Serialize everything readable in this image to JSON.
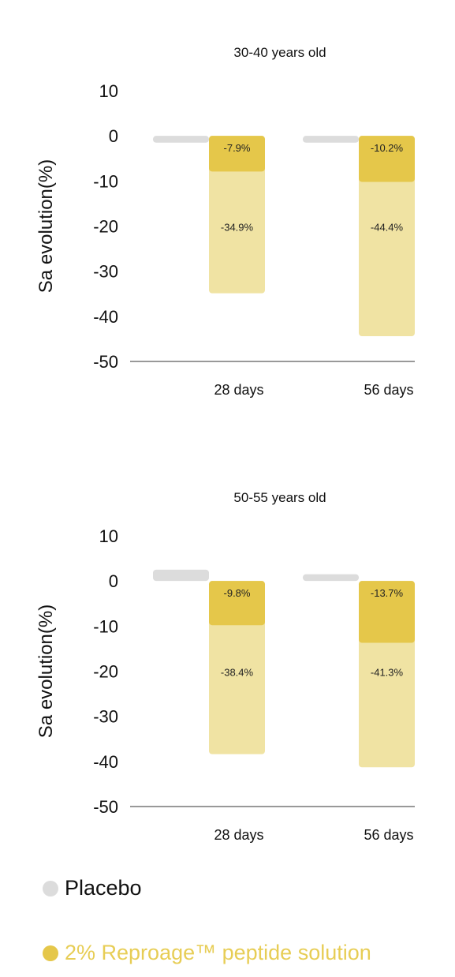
{
  "colors": {
    "placebo": "#dcdcdc",
    "peptide_strong": "#e5c74a",
    "peptide_light": "#f0e3a3",
    "legend_peptide_text": "#e7cd55"
  },
  "legend": {
    "placebo_label": "Placebo",
    "peptide_label": "2% Reproage™ peptide solution"
  },
  "chart_data": [
    {
      "type": "bar",
      "title": "30-40 years old",
      "ylabel": "Sa evolution(%)",
      "xlabel": "",
      "ylim": [
        -50,
        10
      ],
      "yticks": [
        10,
        0,
        -10,
        -20,
        -30,
        -40,
        -50
      ],
      "categories": [
        "28 days",
        "56 days"
      ],
      "series": [
        {
          "name": "Placebo",
          "values": [
            -1.5,
            -1.5
          ]
        },
        {
          "name": "2% Reproage™ peptide solution",
          "values": [
            -7.9,
            -10.2
          ],
          "labels": [
            "-7.9%",
            "-10.2%"
          ]
        },
        {
          "name": "2% Reproage™ peptide solution",
          "values": [
            -34.9,
            -44.4
          ],
          "labels": [
            "-34.9%",
            "-44.4%"
          ]
        }
      ]
    },
    {
      "type": "bar",
      "title": "50-55 years old",
      "ylabel": "Sa evolution(%)",
      "xlabel": "",
      "ylim": [
        -50,
        10
      ],
      "yticks": [
        10,
        0,
        -10,
        -20,
        -30,
        -40,
        -50
      ],
      "categories": [
        "28 days",
        "56 days"
      ],
      "series": [
        {
          "name": "Placebo",
          "values": [
            2.5,
            1.5
          ]
        },
        {
          "name": "2% Reproage™ peptide solution",
          "values": [
            -9.8,
            -13.7
          ],
          "labels": [
            "-9.8%",
            "-13.7%"
          ]
        },
        {
          "name": "2% Reproage™ peptide solution",
          "values": [
            -38.4,
            -41.3
          ],
          "labels": [
            "-38.4%",
            "-41.3%"
          ]
        }
      ]
    }
  ]
}
